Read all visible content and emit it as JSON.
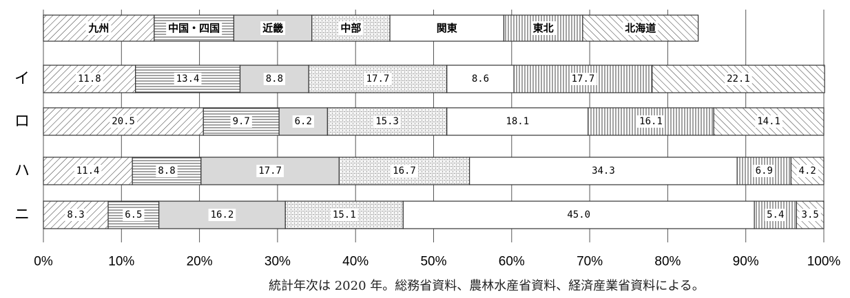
{
  "chart_data": {
    "type": "stacked-bar-100",
    "orientation": "horizontal",
    "legend_placement": "top",
    "categories": [
      "九州",
      "中国・四国",
      "近畿",
      "中部",
      "関東",
      "東北",
      "北海道"
    ],
    "legend_shares": [
      14.2,
      10.2,
      10.0,
      10.0,
      14.6,
      10.1,
      14.8
    ],
    "rows": [
      {
        "label": "イ",
        "values": [
          11.8,
          13.4,
          8.8,
          17.7,
          8.6,
          17.7,
          22.1
        ],
        "labels": [
          "11.8",
          "13.4",
          "8.8",
          "17.7",
          "8.6",
          "17.7",
          "22.1"
        ]
      },
      {
        "label": "ロ",
        "values": [
          20.5,
          9.7,
          6.2,
          15.3,
          18.1,
          16.1,
          14.1
        ],
        "labels": [
          "20.5",
          "9.7",
          "6.2",
          "15.3",
          "18.1",
          "16.1",
          "14.1"
        ]
      },
      {
        "label": "ハ",
        "values": [
          11.4,
          8.8,
          17.7,
          16.7,
          34.3,
          6.9,
          4.2
        ],
        "labels": [
          "11.4",
          "8.8",
          "17.7",
          "16.7",
          "34.3",
          "6.9",
          "4.2"
        ]
      },
      {
        "label": "ニ",
        "values": [
          8.3,
          6.5,
          16.2,
          15.1,
          45.0,
          5.4,
          3.5
        ],
        "labels": [
          "8.3",
          "6.5",
          "16.2",
          "15.1",
          "45.0",
          "5.4",
          "3.5"
        ]
      }
    ],
    "xlim": [
      0,
      100
    ],
    "xticks": [
      "0%",
      "10%",
      "20%",
      "30%",
      "40%",
      "50%",
      "60%",
      "70%",
      "80%",
      "90%",
      "100%"
    ],
    "grid": "vertical",
    "patterns": [
      "diagonal-forward",
      "horizontal",
      "solid-gray",
      "dotted-grid",
      "plain-white",
      "vertical",
      "diagonal-back"
    ],
    "colors": {
      "stroke": "#333333",
      "gray_fill": "#d9d9d9",
      "white_fill": "#ffffff",
      "grid": "#555555"
    }
  },
  "note": "統計年次は 2020 年。総務省資料、農林水産省資料、経済産業省資料による。"
}
